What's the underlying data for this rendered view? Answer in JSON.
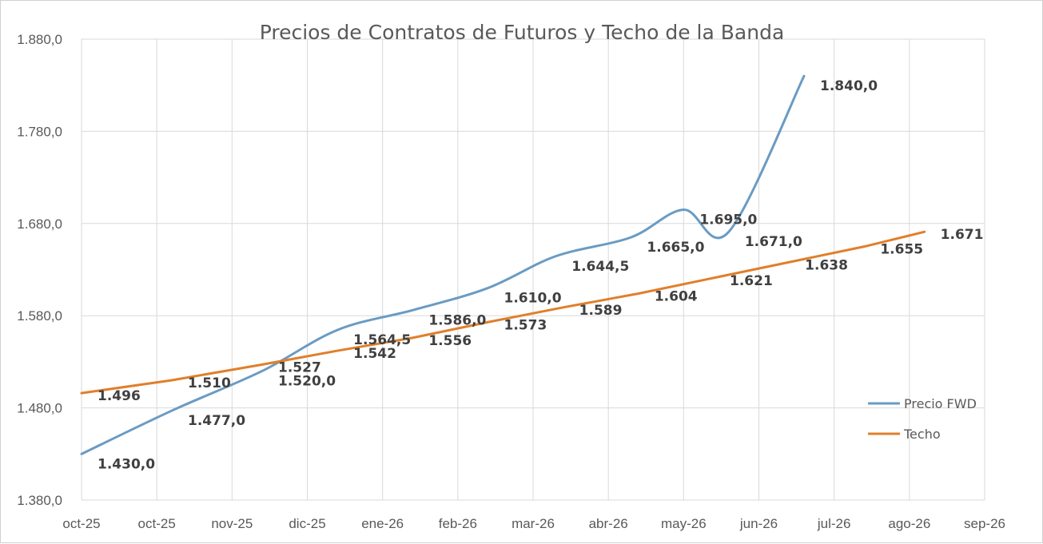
{
  "chart_data": {
    "type": "line",
    "title": "Precios de Contratos de Futuros y Techo de la Banda",
    "xlabel": "",
    "ylabel": "",
    "ylim": [
      1380,
      1880
    ],
    "y_ticks": [
      "1.880,0",
      "1.780,0",
      "1.680,0",
      "1.580,0",
      "1.480,0",
      "1.380,0"
    ],
    "y_tick_values": [
      1880,
      1780,
      1680,
      1580,
      1480,
      1380
    ],
    "x_ticks": [
      "oct-25",
      "oct-25",
      "nov-25",
      "dic-25",
      "ene-26",
      "feb-26",
      "mar-26",
      "abr-26",
      "may-26",
      "jun-26",
      "jul-26",
      "ago-26",
      "sep-26"
    ],
    "grid": true,
    "legend_position": "right",
    "series": [
      {
        "name": "Precio FWD",
        "color": "#6a9bc3",
        "x": [
          0,
          1.2,
          2.4,
          3.4,
          4.4,
          5.4,
          6.3,
          7.3,
          8.0,
          8.6,
          9.6
        ],
        "values": [
          1430.0,
          1477.0,
          1520.0,
          1564.5,
          1586.0,
          1610.0,
          1644.5,
          1665.0,
          1695.0,
          1671.0,
          1840.0
        ],
        "labels": [
          "1.430,0",
          "1.477,0",
          "1.520,0",
          "1.564,5",
          "1.586,0",
          "1.610,0",
          "1.644,5",
          "1.665,0",
          "1.695,0",
          "1.671,0",
          "1.840,0"
        ]
      },
      {
        "name": "Techo",
        "color": "#e07f2b",
        "x": [
          0,
          1.2,
          2.4,
          3.4,
          4.4,
          5.4,
          6.4,
          7.4,
          8.4,
          9.4,
          10.4,
          11.2
        ],
        "values": [
          1496,
          1510,
          1527,
          1542,
          1556,
          1573,
          1589,
          1604,
          1621,
          1638,
          1655,
          1671
        ],
        "labels": [
          "1.496",
          "1.510",
          "1.527",
          "1.542",
          "1.556",
          "1.573",
          "1.589",
          "1.604",
          "1.621",
          "1.638",
          "1.655",
          "1.671"
        ]
      }
    ]
  },
  "colors": {
    "grid": "#d9d9d9",
    "axis_text": "#595959",
    "label_text": "#404040"
  }
}
